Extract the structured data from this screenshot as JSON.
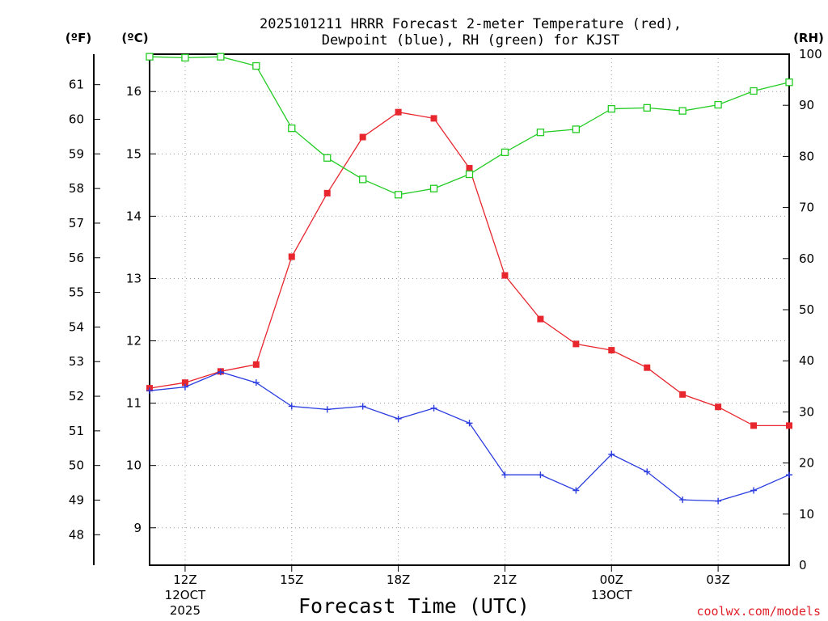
{
  "chart_data": {
    "type": "line",
    "title_line1": "2025101211 HRRR Forecast 2-meter Temperature (red),",
    "title_line2": "Dewpoint (blue), RH (green) for KJST",
    "units": {
      "fahrenheit": "(ºF)",
      "celsius": "(ºC)",
      "rh": "(RH)"
    },
    "xlabel": "Forecast Time (UTC)",
    "credit": "coolwx.com/models",
    "x_hours": [
      11,
      12,
      13,
      14,
      15,
      16,
      17,
      18,
      19,
      20,
      21,
      22,
      23,
      24,
      25,
      26,
      27,
      28,
      29
    ],
    "x_range": [
      11,
      29
    ],
    "x_ticks": [
      {
        "hour": 12,
        "label": "12Z",
        "sub1": "12OCT",
        "sub2": "2025"
      },
      {
        "hour": 15,
        "label": "15Z",
        "sub1": "",
        "sub2": ""
      },
      {
        "hour": 18,
        "label": "18Z",
        "sub1": "",
        "sub2": ""
      },
      {
        "hour": 21,
        "label": "21Z",
        "sub1": "",
        "sub2": ""
      },
      {
        "hour": 24,
        "label": "00Z",
        "sub1": "13OCT",
        "sub2": ""
      },
      {
        "hour": 27,
        "label": "03Z",
        "sub1": "",
        "sub2": ""
      }
    ],
    "celsius_range": [
      8.4,
      16.6
    ],
    "celsius_ticks": [
      9,
      10,
      11,
      12,
      13,
      14,
      15,
      16
    ],
    "fahrenheit_ticks": [
      48,
      49,
      50,
      51,
      52,
      53,
      54,
      55,
      56,
      57,
      58,
      59,
      60,
      61
    ],
    "rh_range": [
      0,
      100
    ],
    "rh_ticks": [
      0,
      10,
      20,
      30,
      40,
      50,
      60,
      70,
      80,
      90,
      100
    ],
    "series": [
      {
        "name": "Temperature",
        "color": "#e8262e",
        "marker": "filled-square",
        "axis": "celsius",
        "values": [
          11.24,
          11.33,
          11.51,
          11.62,
          13.35,
          14.37,
          15.27,
          15.67,
          15.57,
          14.77,
          13.05,
          12.35,
          11.95,
          11.85,
          11.57,
          11.14,
          10.94,
          10.64,
          10.64
        ]
      },
      {
        "name": "Dewpoint",
        "color": "#2b3de0",
        "marker": "plus",
        "axis": "celsius",
        "values": [
          11.2,
          11.26,
          11.5,
          11.33,
          10.95,
          10.9,
          10.95,
          10.75,
          10.92,
          10.68,
          9.85,
          9.85,
          9.6,
          10.18,
          9.9,
          9.45,
          9.43,
          9.6,
          9.85
        ]
      },
      {
        "name": "RH",
        "color": "#22cc22",
        "marker": "open-square",
        "axis": "rh",
        "values": [
          99.5,
          99.3,
          99.5,
          97.7,
          85.5,
          79.7,
          75.5,
          72.5,
          73.7,
          76.5,
          80.8,
          84.7,
          85.3,
          89.3,
          89.5,
          88.9,
          90.1,
          92.8,
          94.5
        ]
      }
    ]
  }
}
